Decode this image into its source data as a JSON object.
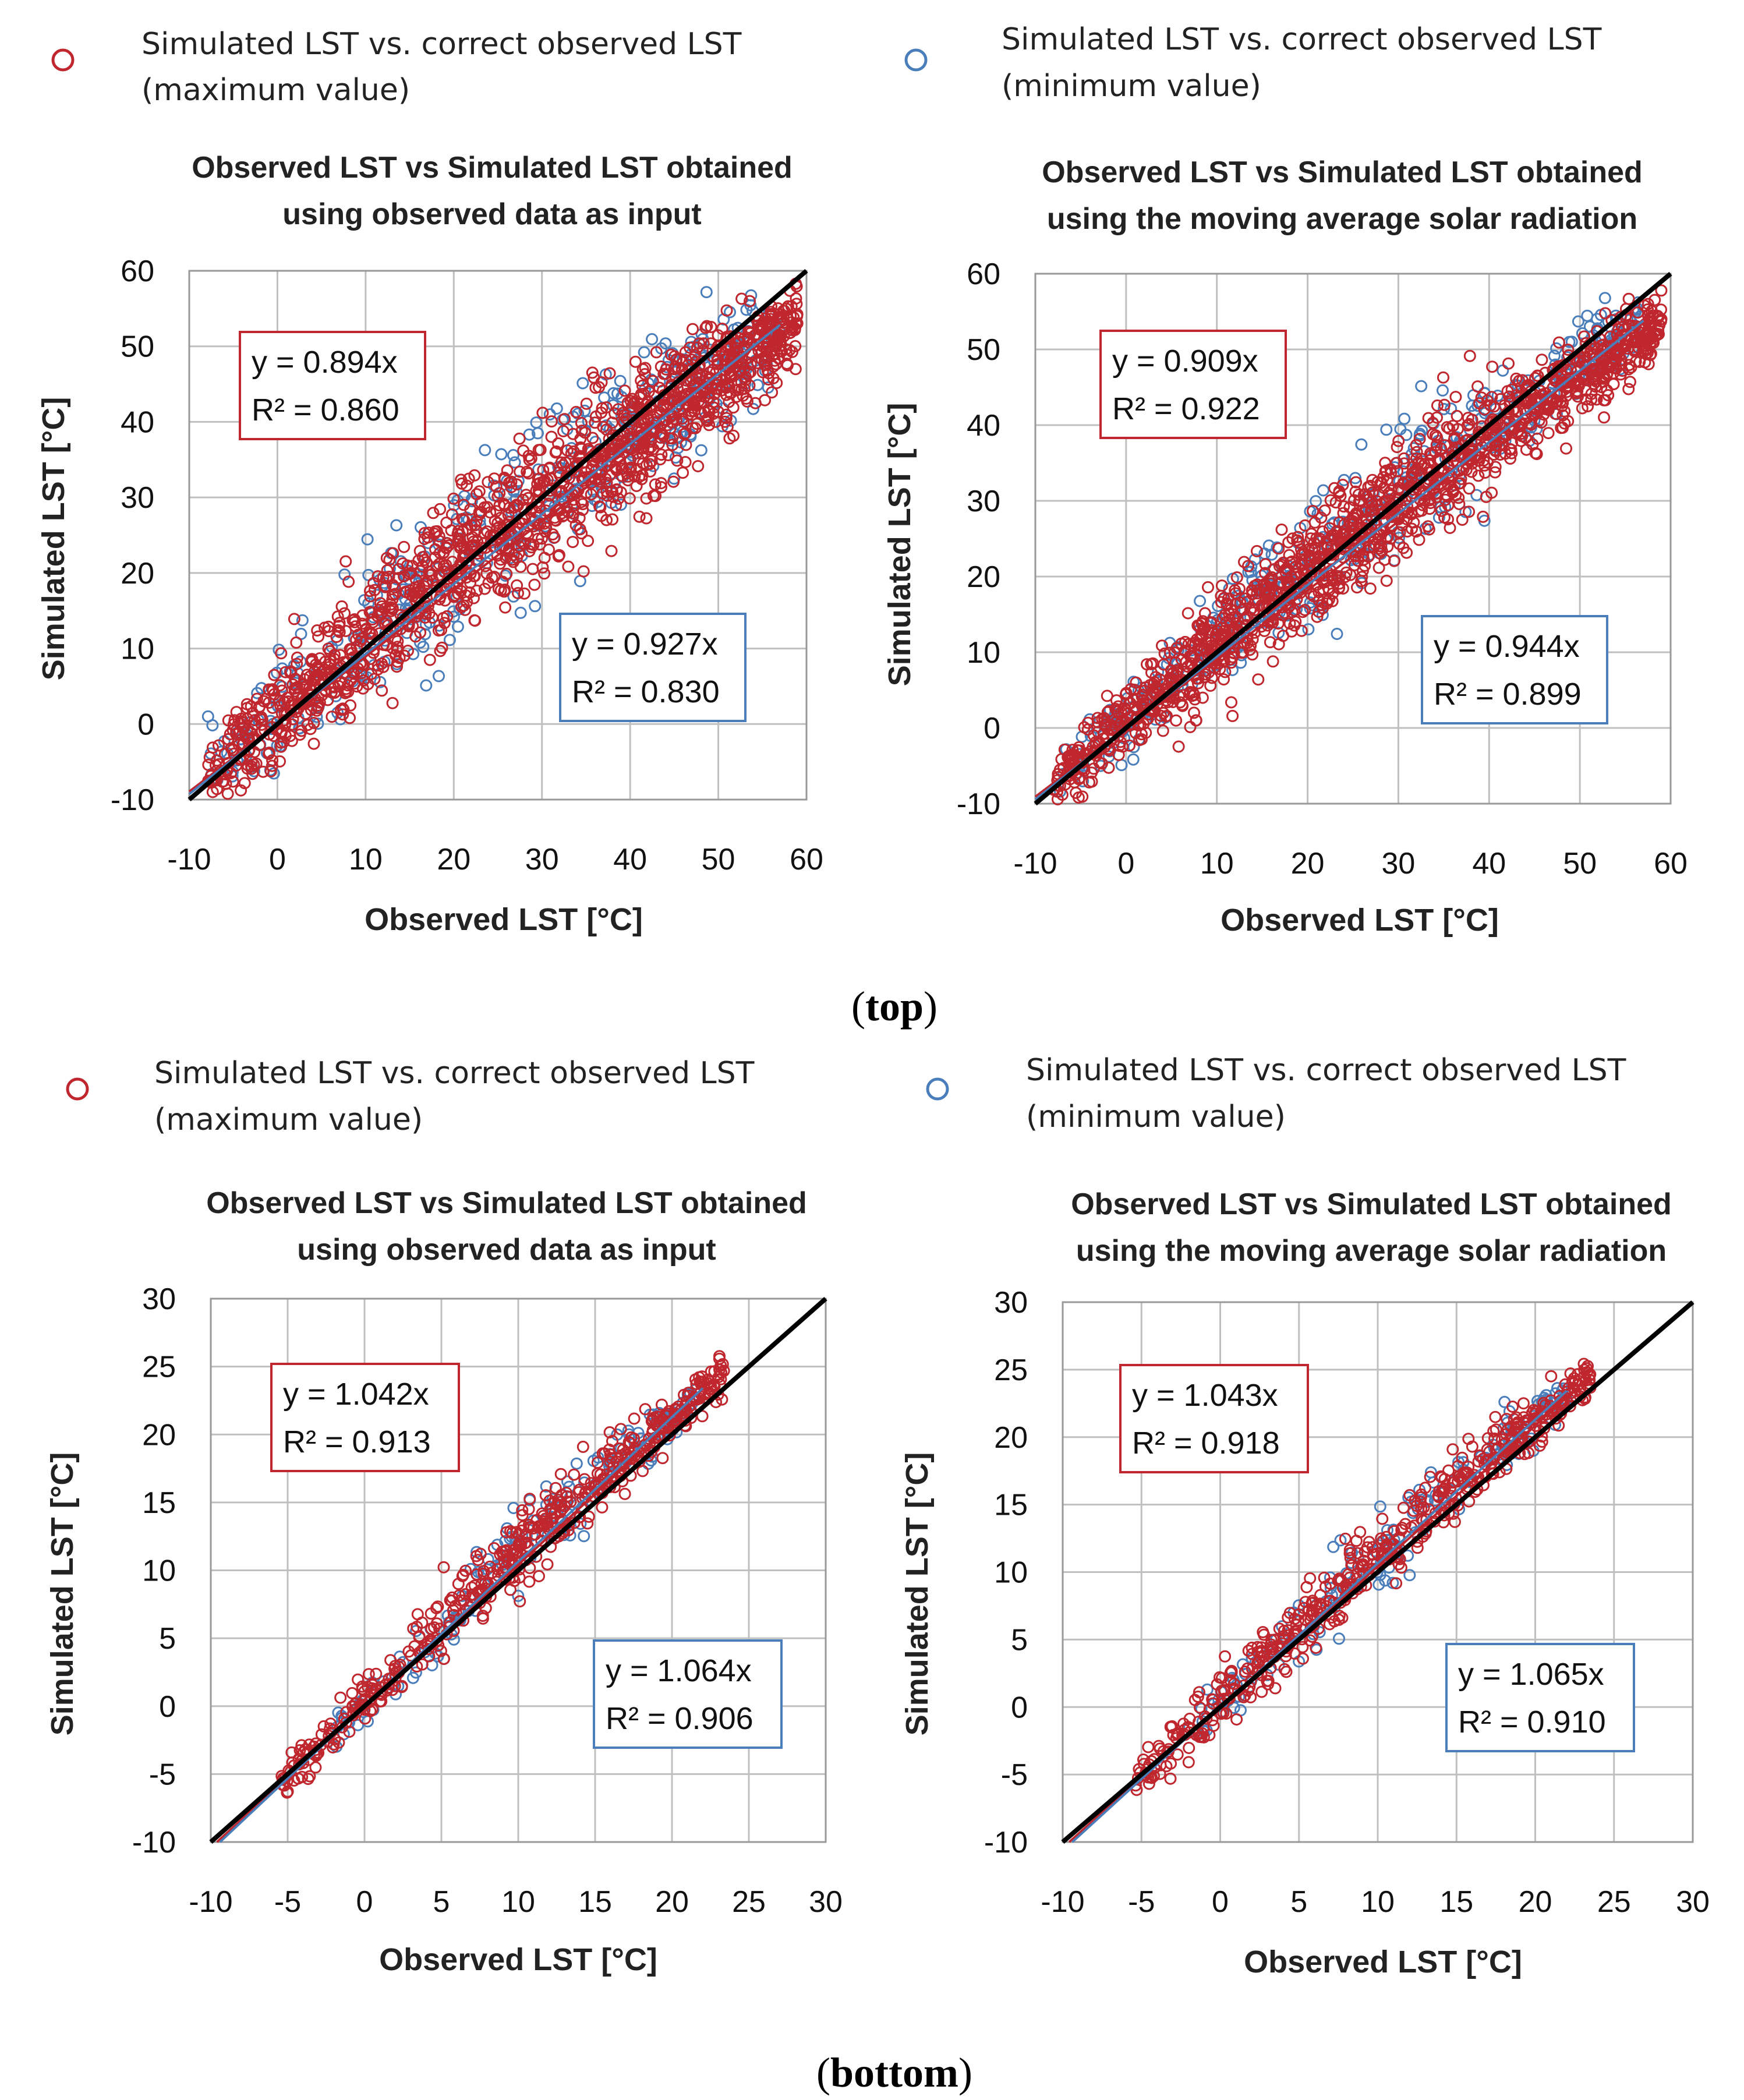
{
  "colors": {
    "max": "#c0262d",
    "min": "#4a7ebb",
    "ref": "#000000",
    "grid": "#bfbfbf"
  },
  "captions": {
    "top_bold": "top",
    "bottom_bold": "bottom",
    "open": "(",
    "close": ")"
  },
  "chart_data": [
    {
      "type": "scatter",
      "title_line1": "Observed LST vs Simulated LST obtained",
      "title_line2": "using observed data as input",
      "xlabel": "Observed LST [°C]",
      "ylabel": "Simulated LST [°C]",
      "xlim": [
        -10,
        60
      ],
      "ylim": [
        -10,
        60
      ],
      "xticks": [
        "-10",
        "0",
        "10",
        "20",
        "30",
        "40",
        "50",
        "60"
      ],
      "yticks": [
        "-10",
        "0",
        "10",
        "20",
        "30",
        "40",
        "50",
        "60"
      ],
      "grid": true,
      "legend": [
        {
          "marker": "circle",
          "color": "#c0262d",
          "line1": "Simulated  LST  vs.  correct  observed  LST",
          "line2": "(maximum value)"
        },
        {
          "marker": "circle",
          "color": "#4a7ebb",
          "line1": "Simulated  LST  vs.  correct  observed  LST",
          "line2": "(minimum value)"
        }
      ],
      "series": [
        {
          "name": "maximum value",
          "color": "#c0262d",
          "fit_slope": 0.894,
          "eq": "y = 0.894x",
          "r2_text": "R² = 0.860",
          "data_range": [
            -8,
            59
          ],
          "spread": 4.8
        },
        {
          "name": "minimum value",
          "color": "#4a7ebb",
          "fit_slope": 0.927,
          "eq": "y = 0.927x",
          "r2_text": "R² = 0.830",
          "data_range": [
            -8,
            57
          ],
          "spread": 5.5
        }
      ],
      "reference_line": "y = x"
    },
    {
      "type": "scatter",
      "title_line1": "Observed LST vs Simulated LST obtained",
      "title_line2": "using the moving average solar radiation",
      "xlabel": "Observed LST [°C]",
      "ylabel": "Simulated LST [°C]",
      "xlim": [
        -10,
        60
      ],
      "ylim": [
        -10,
        60
      ],
      "xticks": [
        "-10",
        "0",
        "10",
        "20",
        "30",
        "40",
        "50",
        "60"
      ],
      "yticks": [
        "-10",
        "0",
        "10",
        "20",
        "30",
        "40",
        "50",
        "60"
      ],
      "grid": true,
      "series": [
        {
          "name": "maximum value",
          "color": "#c0262d",
          "fit_slope": 0.909,
          "eq": "y = 0.909x",
          "r2_text": "R² = 0.922",
          "data_range": [
            -8,
            59
          ],
          "spread": 3.6
        },
        {
          "name": "minimum value",
          "color": "#4a7ebb",
          "fit_slope": 0.944,
          "eq": "y = 0.944x",
          "r2_text": "R² = 0.899",
          "data_range": [
            -8,
            57
          ],
          "spread": 4.0
        }
      ],
      "reference_line": "y = x"
    },
    {
      "type": "scatter",
      "title_line1": "Observed LST vs Simulated LST obtained",
      "title_line2": "using observed data as input",
      "xlabel": "Observed LST [°C]",
      "ylabel": "Simulated LST [°C]",
      "xlim": [
        -10,
        30
      ],
      "ylim": [
        -10,
        30
      ],
      "xticks": [
        "-10",
        "-5",
        "0",
        "5",
        "10",
        "15",
        "20",
        "25",
        "30"
      ],
      "yticks": [
        "-10",
        "-5",
        "0",
        "5",
        "10",
        "15",
        "20",
        "25",
        "30"
      ],
      "grid": true,
      "legend": [
        {
          "marker": "circle",
          "color": "#c0262d",
          "line1": "Simulated  LST  vs.  correct  observed  LST",
          "line2": "(maximum value)"
        },
        {
          "marker": "circle",
          "color": "#4a7ebb",
          "line1": "Simulated  LST  vs.  correct  observed  LST",
          "line2": "(minimum value)"
        }
      ],
      "series": [
        {
          "name": "maximum value",
          "color": "#c0262d",
          "fit_slope": 1.042,
          "eq": "y = 1.042x",
          "r2_text": "R² = 0.913",
          "data_range": [
            -5.5,
            23.5
          ],
          "spread": 1.3
        },
        {
          "name": "minimum value",
          "color": "#4a7ebb",
          "fit_slope": 1.064,
          "eq": "y = 1.064x",
          "r2_text": "R² = 0.906",
          "data_range": [
            -2,
            22
          ],
          "spread": 1.4
        }
      ],
      "reference_line": "y = x"
    },
    {
      "type": "scatter",
      "title_line1": "Observed LST vs Simulated LST obtained",
      "title_line2": "using the moving average solar radiation",
      "xlabel": "Observed LST [°C]",
      "ylabel": "Simulated LST [°C]",
      "xlim": [
        -10,
        30
      ],
      "ylim": [
        -10,
        30
      ],
      "xticks": [
        "-10",
        "-5",
        "0",
        "5",
        "10",
        "15",
        "20",
        "25",
        "30"
      ],
      "yticks": [
        "-10",
        "-5",
        "0",
        "5",
        "10",
        "15",
        "20",
        "25",
        "30"
      ],
      "grid": true,
      "series": [
        {
          "name": "maximum value",
          "color": "#c0262d",
          "fit_slope": 1.043,
          "eq": "y = 1.043x",
          "r2_text": "R² = 0.918",
          "data_range": [
            -5.5,
            23.5
          ],
          "spread": 1.3
        },
        {
          "name": "minimum value",
          "color": "#4a7ebb",
          "fit_slope": 1.065,
          "eq": "y = 1.065x",
          "r2_text": "R² = 0.910",
          "data_range": [
            -2,
            22
          ],
          "spread": 1.4
        }
      ],
      "reference_line": "y = x"
    }
  ]
}
